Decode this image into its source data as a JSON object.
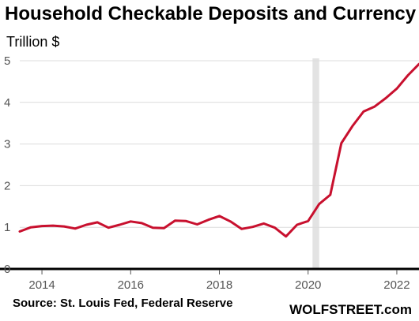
{
  "header": {
    "title": "Household Checkable Deposits and Currency",
    "ylabel": "Trillion $"
  },
  "footer": {
    "source": "Source: St. Louis Fed, Federal Reserve",
    "brand": "WOLFSTREET.com"
  },
  "chart_data": {
    "type": "line",
    "title": "Household Checkable Deposits and Currency",
    "ylabel": "Trillion $",
    "xlabel": "",
    "xlim": [
      2013.5,
      2022.5
    ],
    "ylim": [
      0,
      5
    ],
    "x_ticks": [
      2014,
      2016,
      2018,
      2020,
      2022
    ],
    "y_ticks": [
      0,
      1,
      2,
      3,
      4,
      5
    ],
    "grid": "horizontal",
    "recession_band": [
      2020.1,
      2020.25
    ],
    "series": [
      {
        "color": "#c8102e",
        "x": [
          2013.5,
          2013.75,
          2014.0,
          2014.25,
          2014.5,
          2014.75,
          2015.0,
          2015.25,
          2015.5,
          2015.75,
          2016.0,
          2016.25,
          2016.5,
          2016.75,
          2017.0,
          2017.25,
          2017.5,
          2017.75,
          2018.0,
          2018.25,
          2018.5,
          2018.75,
          2019.0,
          2019.25,
          2019.5,
          2019.75,
          2020.0,
          2020.25,
          2020.5,
          2020.75,
          2021.0,
          2021.25,
          2021.5,
          2021.75,
          2022.0,
          2022.25,
          2022.5
        ],
        "values": [
          0.9,
          1.0,
          1.03,
          1.04,
          1.02,
          0.97,
          1.06,
          1.12,
          0.99,
          1.06,
          1.14,
          1.1,
          0.99,
          0.98,
          1.16,
          1.15,
          1.07,
          1.18,
          1.27,
          1.14,
          0.96,
          1.01,
          1.09,
          0.99,
          0.78,
          1.06,
          1.15,
          1.56,
          1.78,
          3.02,
          3.43,
          3.78,
          3.9,
          4.1,
          4.33,
          4.65,
          4.92
        ]
      }
    ]
  }
}
